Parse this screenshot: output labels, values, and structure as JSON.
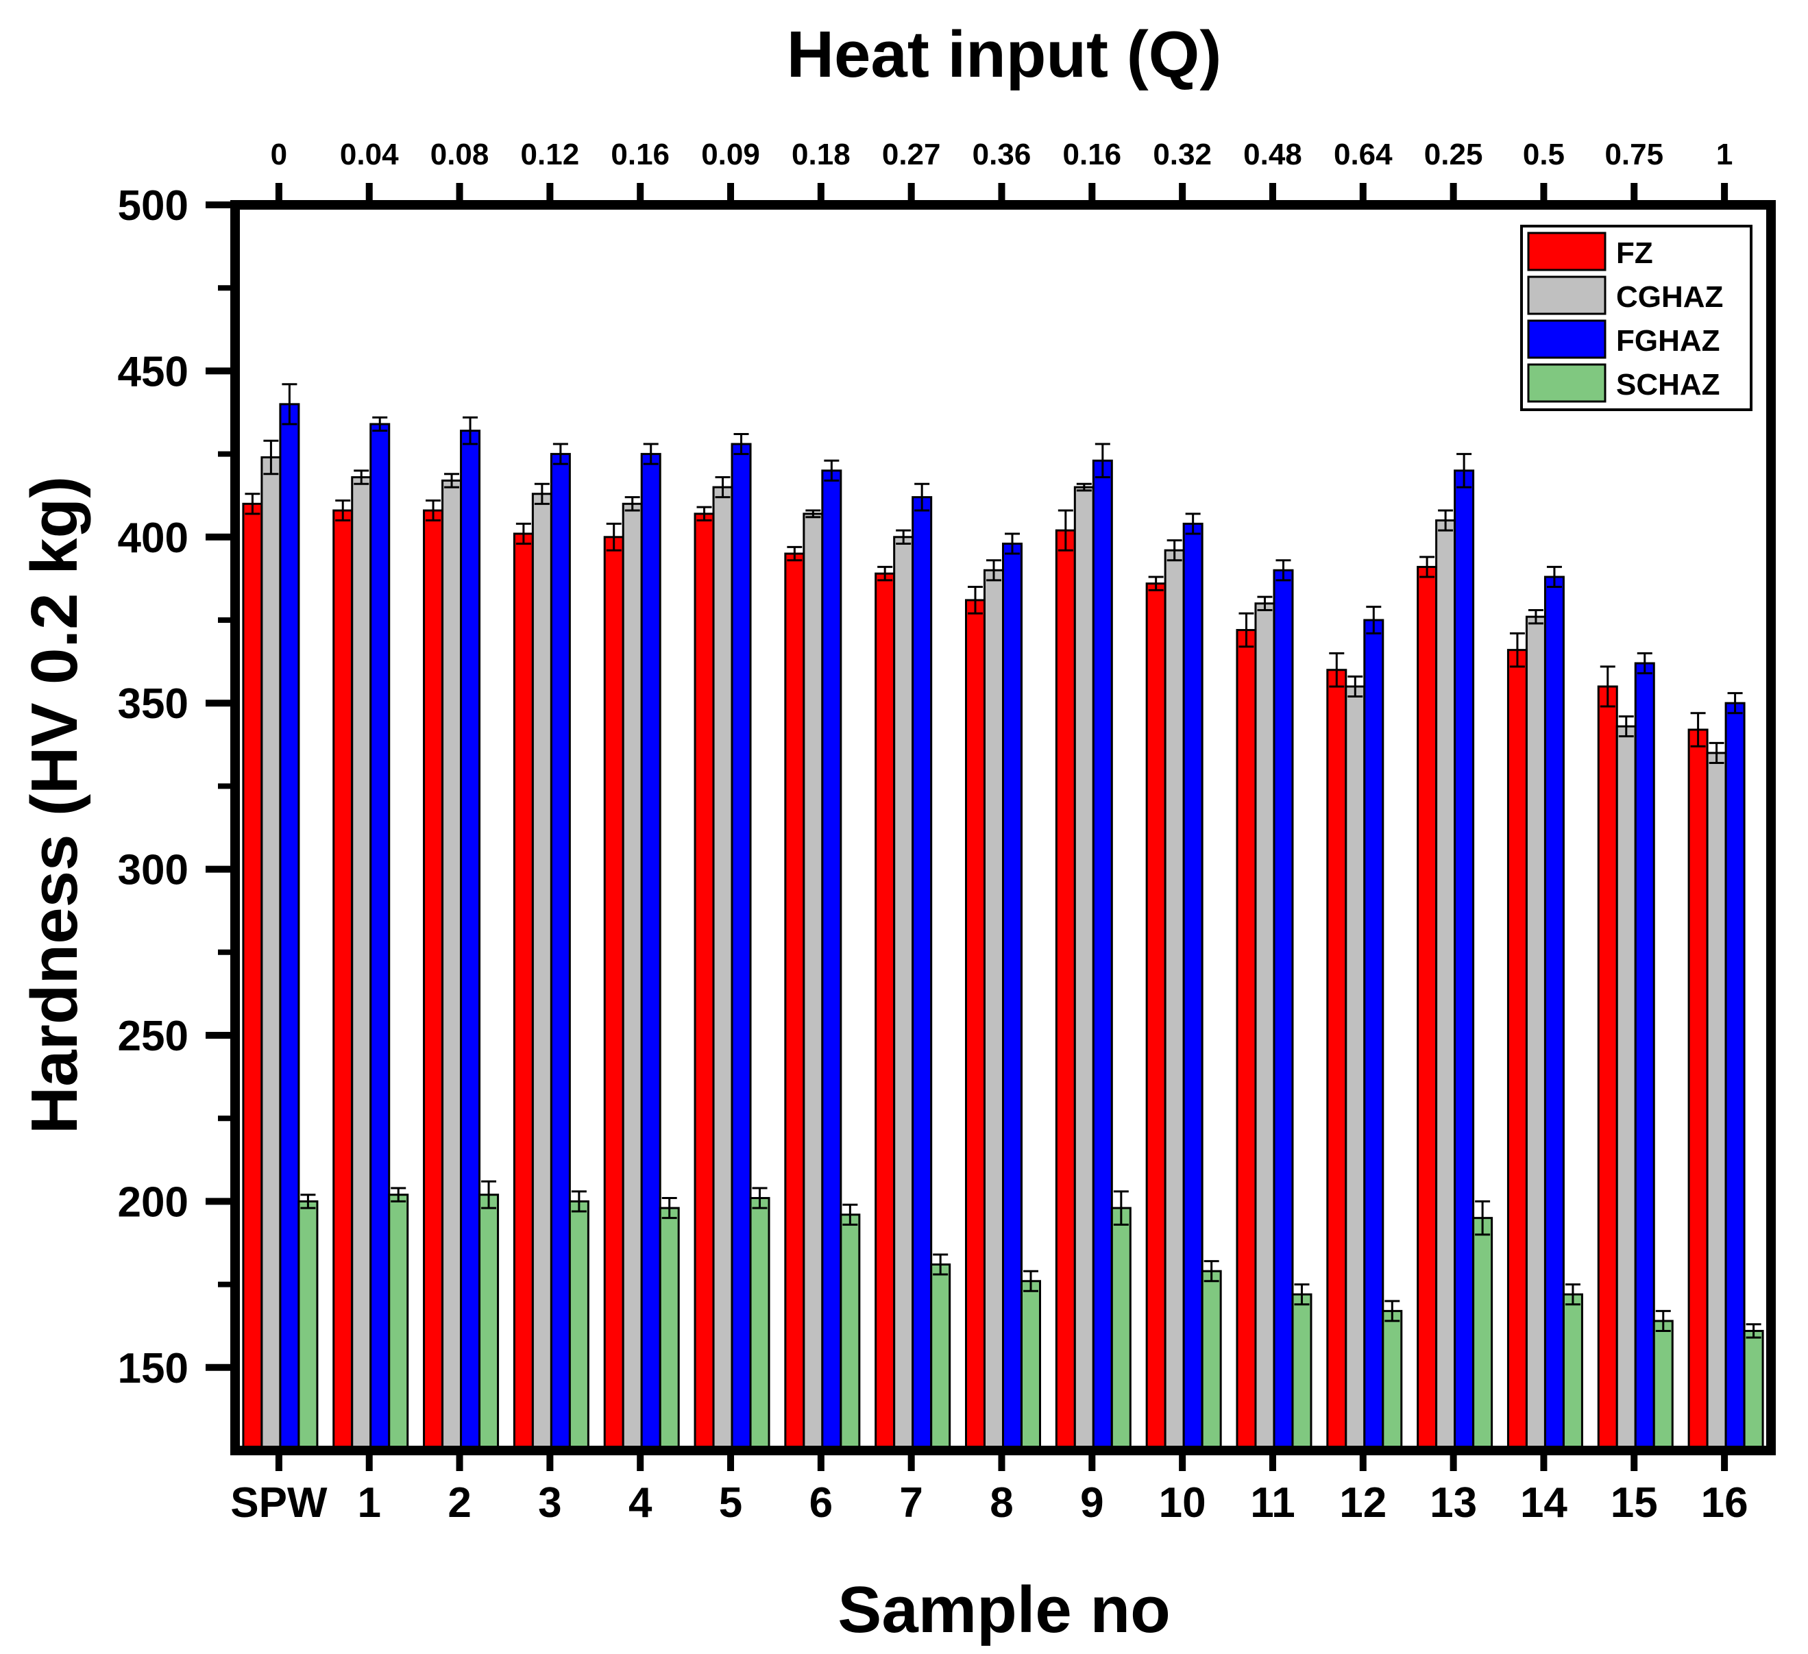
{
  "chart_data": {
    "type": "bar",
    "title": "Heat input (Q)",
    "xlabel": "Sample no",
    "ylabel": "Hardness (HV 0.2 kg)",
    "ylim": [
      125,
      500
    ],
    "yticks": [
      150,
      200,
      250,
      300,
      350,
      400,
      450,
      500
    ],
    "categories": [
      "SPW",
      "1",
      "2",
      "3",
      "4",
      "5",
      "6",
      "7",
      "8",
      "9",
      "10",
      "11",
      "12",
      "13",
      "14",
      "15",
      "16"
    ],
    "top_axis_labels": [
      "0",
      "0.04",
      "0.08",
      "0.12",
      "0.16",
      "0.09",
      "0.18",
      "0.27",
      "0.36",
      "0.16",
      "0.32",
      "0.48",
      "0.64",
      "0.25",
      "0.5",
      "0.75",
      "1"
    ],
    "legend_position": "top-right",
    "series": [
      {
        "name": "FZ",
        "color": "#ff0000",
        "values": [
          410,
          408,
          408,
          401,
          400,
          407,
          395,
          389,
          381,
          402,
          386,
          372,
          360,
          391,
          366,
          355,
          342
        ],
        "errors": [
          3,
          3,
          3,
          3,
          4,
          2,
          2,
          2,
          4,
          6,
          2,
          5,
          5,
          3,
          5,
          6,
          5
        ]
      },
      {
        "name": "CGHAZ",
        "color": "#c0c0c0",
        "values": [
          424,
          418,
          417,
          413,
          410,
          415,
          407,
          400,
          390,
          415,
          396,
          380,
          355,
          405,
          376,
          343,
          335
        ],
        "errors": [
          5,
          2,
          2,
          3,
          2,
          3,
          1,
          2,
          3,
          1,
          3,
          2,
          3,
          3,
          2,
          3,
          3
        ]
      },
      {
        "name": "FGHAZ",
        "color": "#0000ff",
        "values": [
          440,
          434,
          432,
          425,
          425,
          428,
          420,
          412,
          398,
          423,
          404,
          390,
          375,
          420,
          388,
          362,
          350
        ],
        "errors": [
          6,
          2,
          4,
          3,
          3,
          3,
          3,
          4,
          3,
          5,
          3,
          3,
          4,
          5,
          3,
          3,
          3
        ]
      },
      {
        "name": "SCHAZ",
        "color": "#80c880",
        "values": [
          200,
          202,
          202,
          200,
          198,
          201,
          196,
          181,
          176,
          198,
          179,
          172,
          167,
          195,
          172,
          164,
          161
        ],
        "errors": [
          2,
          2,
          4,
          3,
          3,
          3,
          3,
          3,
          3,
          5,
          3,
          3,
          3,
          5,
          3,
          3,
          2
        ]
      }
    ]
  }
}
